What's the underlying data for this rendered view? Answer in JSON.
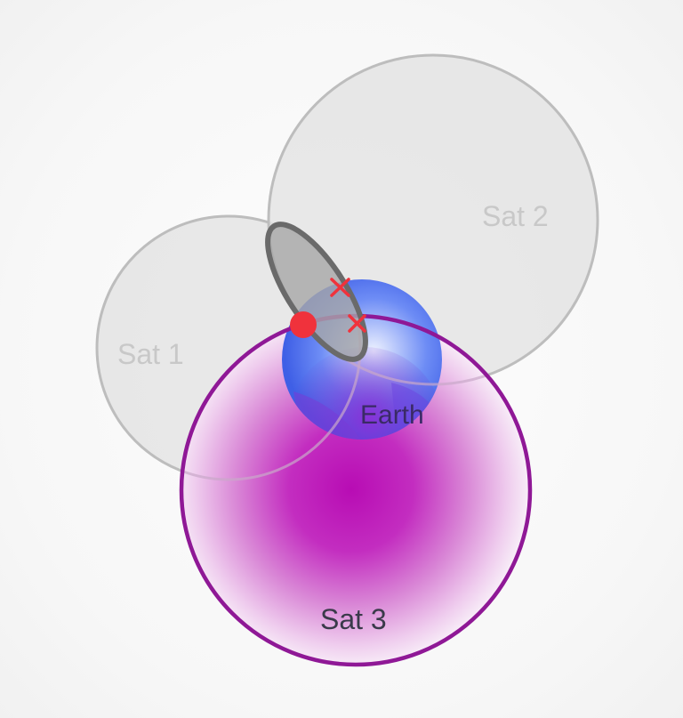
{
  "labels": {
    "sat1": "Sat 1",
    "sat2": "Sat 2",
    "sat3": "Sat 3",
    "earth": "Earth"
  },
  "colors": {
    "sat_fill": "#e4e4e4",
    "sat_stroke": "#bdbdbd",
    "sat_label": "#c8c8c8",
    "sat3_ring": "#8f1896",
    "sat3_core": "#b80cb4",
    "earth_blue": "#4f73f2",
    "earth_purple": "#7d2fcf",
    "ellipse_fill": "#a8a8a8",
    "ellipse_stroke": "#6a6a6a",
    "marker_red": "#f0323c",
    "text_dark": "#3a3a4a"
  },
  "markers": {
    "position_dot": "red-dot",
    "intersection_marks": [
      "red-x",
      "red-x"
    ]
  }
}
